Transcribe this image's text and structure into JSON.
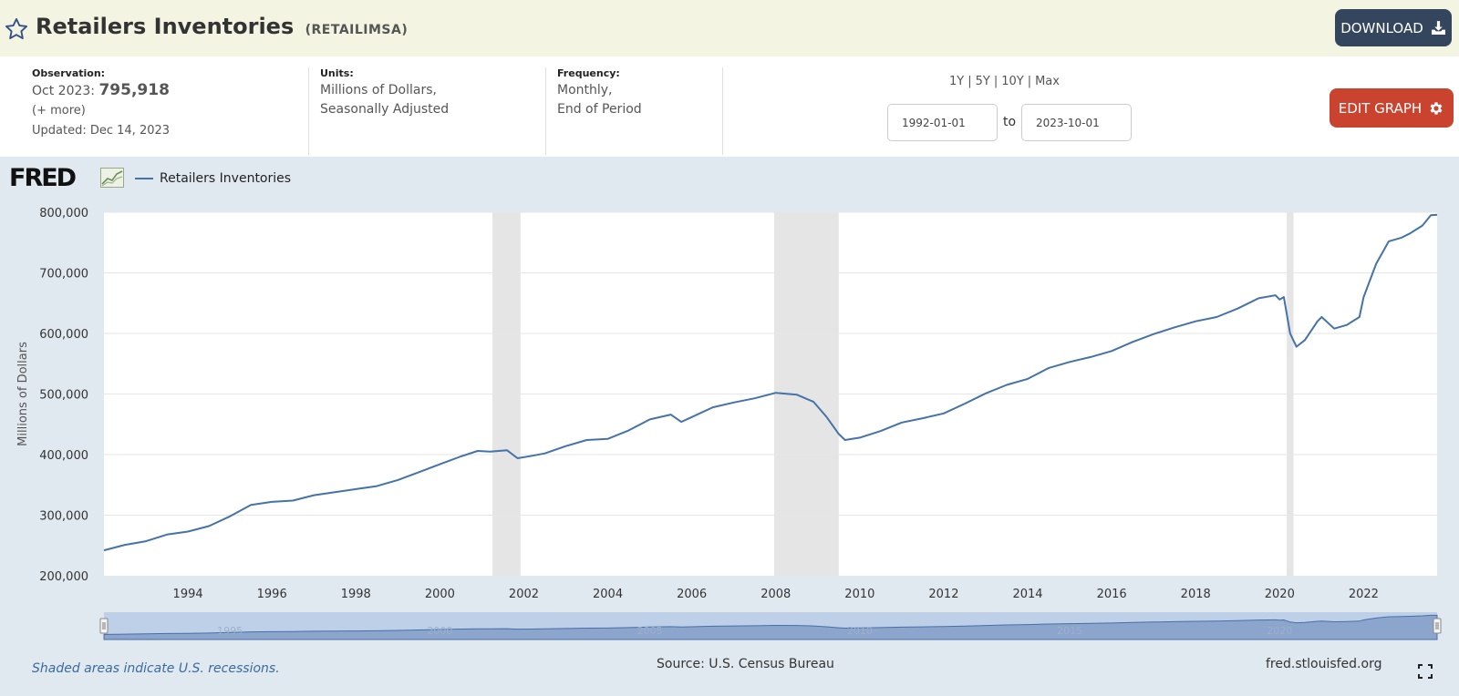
{
  "header": {
    "title": "Retailers Inventories",
    "series_id": "(RETAILIMSA)",
    "download_label": "DOWNLOAD",
    "icons": [
      "star-icon",
      "download-icon"
    ]
  },
  "info": {
    "observation_label": "Observation:",
    "observation_date": "Oct 2023:",
    "observation_value": "795,918",
    "more_label": "(+ more)",
    "updated": "Updated: Dec 14, 2023",
    "units_label": "Units:",
    "units_line1": "Millions of Dollars,",
    "units_line2": "Seasonally Adjusted",
    "frequency_label": "Frequency:",
    "frequency_line1": "Monthly,",
    "frequency_line2": "End of Period",
    "range_1y": "1Y",
    "range_5y": "5Y",
    "range_10y": "10Y",
    "range_max": "Max",
    "separator": "|",
    "date_from": "1992-01-01",
    "to_label": "to",
    "date_to": "2023-10-01",
    "edit_label": "EDIT GRAPH",
    "edit_icon": "gear-icon"
  },
  "chart_meta": {
    "logo_text": "FRED",
    "legend_label": "Retailers Inventories",
    "line_color": "#4572a7",
    "recession_color": "#e5e5e5",
    "navigator_fill": "#8ba5cd",
    "navigator_bg": "#bdd0e8"
  },
  "footer": {
    "note": "Shaded areas indicate U.S. recessions.",
    "source": "Source: U.S. Census Bureau",
    "site": "fred.stlouisfed.org"
  },
  "chart_data": {
    "type": "line",
    "title": "",
    "xlabel": "",
    "ylabel": "Millions of Dollars",
    "xlim": [
      1992.0,
      2023.75
    ],
    "ylim": [
      200000,
      800000
    ],
    "yticks": [
      200000,
      300000,
      400000,
      500000,
      600000,
      700000,
      800000
    ],
    "ytick_labels": [
      "200,000",
      "300,000",
      "400,000",
      "500,000",
      "600,000",
      "700,000",
      "800,000"
    ],
    "xticks": [
      1994,
      1996,
      1998,
      2000,
      2002,
      2004,
      2006,
      2008,
      2010,
      2012,
      2014,
      2016,
      2018,
      2020,
      2022
    ],
    "navigator_ticks": [
      "1995",
      "2000",
      "2005",
      "2010",
      "2015",
      "2020"
    ],
    "grid": true,
    "legend": "top-left",
    "recessions": [
      [
        2001.25,
        2001.92
      ],
      [
        2007.96,
        2009.5
      ],
      [
        2020.17,
        2020.33
      ]
    ],
    "series": [
      {
        "name": "Retailers Inventories",
        "points": [
          [
            1992.0,
            242000
          ],
          [
            1992.5,
            251000
          ],
          [
            1993.0,
            257000
          ],
          [
            1993.5,
            268000
          ],
          [
            1994.0,
            273000
          ],
          [
            1994.5,
            282000
          ],
          [
            1995.0,
            298000
          ],
          [
            1995.5,
            317000
          ],
          [
            1996.0,
            322000
          ],
          [
            1996.5,
            324000
          ],
          [
            1997.0,
            333000
          ],
          [
            1997.5,
            338000
          ],
          [
            1998.0,
            343000
          ],
          [
            1998.5,
            348000
          ],
          [
            1999.0,
            358000
          ],
          [
            1999.5,
            371000
          ],
          [
            2000.0,
            384000
          ],
          [
            2000.5,
            397000
          ],
          [
            2000.9,
            406000
          ],
          [
            2001.2,
            405000
          ],
          [
            2001.6,
            407000
          ],
          [
            2001.85,
            394000
          ],
          [
            2002.2,
            398000
          ],
          [
            2002.5,
            402000
          ],
          [
            2003.0,
            414000
          ],
          [
            2003.5,
            424000
          ],
          [
            2004.0,
            426000
          ],
          [
            2004.5,
            440000
          ],
          [
            2005.0,
            458000
          ],
          [
            2005.5,
            466000
          ],
          [
            2005.75,
            454000
          ],
          [
            2006.0,
            462000
          ],
          [
            2006.5,
            478000
          ],
          [
            2007.0,
            486000
          ],
          [
            2007.5,
            493000
          ],
          [
            2008.0,
            502000
          ],
          [
            2008.5,
            499000
          ],
          [
            2008.9,
            487000
          ],
          [
            2009.2,
            463000
          ],
          [
            2009.5,
            434000
          ],
          [
            2009.65,
            424000
          ],
          [
            2010.0,
            428000
          ],
          [
            2010.5,
            439000
          ],
          [
            2011.0,
            453000
          ],
          [
            2011.5,
            460000
          ],
          [
            2012.0,
            468000
          ],
          [
            2012.5,
            484000
          ],
          [
            2013.0,
            501000
          ],
          [
            2013.5,
            515000
          ],
          [
            2014.0,
            525000
          ],
          [
            2014.5,
            543000
          ],
          [
            2015.0,
            553000
          ],
          [
            2015.5,
            561000
          ],
          [
            2016.0,
            571000
          ],
          [
            2016.5,
            586000
          ],
          [
            2017.0,
            599000
          ],
          [
            2017.5,
            610000
          ],
          [
            2018.0,
            620000
          ],
          [
            2018.5,
            627000
          ],
          [
            2019.0,
            641000
          ],
          [
            2019.5,
            658000
          ],
          [
            2019.9,
            663000
          ],
          [
            2020.0,
            656000
          ],
          [
            2020.1,
            660000
          ],
          [
            2020.25,
            600000
          ],
          [
            2020.4,
            578000
          ],
          [
            2020.6,
            589000
          ],
          [
            2020.9,
            620000
          ],
          [
            2021.0,
            627000
          ],
          [
            2021.3,
            608000
          ],
          [
            2021.6,
            614000
          ],
          [
            2021.9,
            627000
          ],
          [
            2022.0,
            660000
          ],
          [
            2022.3,
            715000
          ],
          [
            2022.6,
            752000
          ],
          [
            2022.9,
            758000
          ],
          [
            2023.1,
            765000
          ],
          [
            2023.4,
            778000
          ],
          [
            2023.6,
            795000
          ],
          [
            2023.75,
            795918
          ]
        ]
      }
    ]
  }
}
